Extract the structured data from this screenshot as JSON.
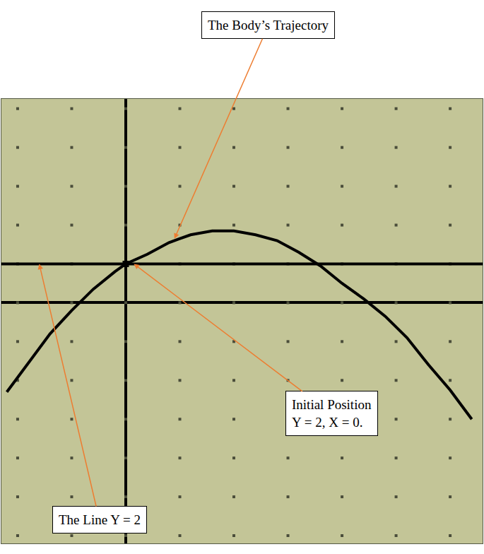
{
  "chart_data": {
    "type": "line",
    "xlim": [
      -2.3,
      6.6
    ],
    "ylim": [
      -12.4,
      10.5
    ],
    "xticks": [
      -2,
      -1,
      0,
      1,
      2,
      3,
      4,
      5,
      6
    ],
    "yticks": [
      -12,
      -10,
      -8,
      -6,
      -4,
      -2,
      0,
      2,
      4,
      6,
      8,
      10
    ],
    "grid": true,
    "tick_labels": false,
    "series": [
      {
        "type": "line",
        "color": "#000000",
        "x": [
          -2.2,
          -1.8,
          -1.4,
          -1.0,
          -0.6,
          -0.2,
          0,
          0.4,
          0.8,
          1.2,
          1.6,
          2.0,
          2.4,
          2.8,
          3.2,
          3.6,
          4.0,
          4.4,
          4.8,
          5.2,
          5.6,
          6.0,
          6.4
        ],
        "values": [
          -4.6,
          -3.1,
          -1.6,
          -0.4,
          0.7,
          1.6,
          2.0,
          2.5,
          3.1,
          3.5,
          3.7,
          3.7,
          3.5,
          3.2,
          2.6,
          1.9,
          1.0,
          0.2,
          -0.7,
          -1.8,
          -3.2,
          -4.5,
          -6.0
        ]
      },
      {
        "type": "line",
        "color": "#000000",
        "x": [
          -2.3,
          6.6
        ],
        "values": [
          2,
          2
        ]
      },
      {
        "type": "scatter",
        "marker": "square",
        "color": "#000000",
        "x": [
          0
        ],
        "values": [
          2
        ]
      }
    ],
    "annotations": [
      {
        "text": [
          "The Body’s Trajectory"
        ],
        "x": 0.9,
        "y": 3.3
      },
      {
        "text": [
          "Initial Position",
          "Y = 2, X = 0."
        ],
        "x": 0.15,
        "y": 2
      },
      {
        "text": [
          "The Line Y = 2"
        ],
        "x": -1.6,
        "y": 2
      }
    ]
  }
}
